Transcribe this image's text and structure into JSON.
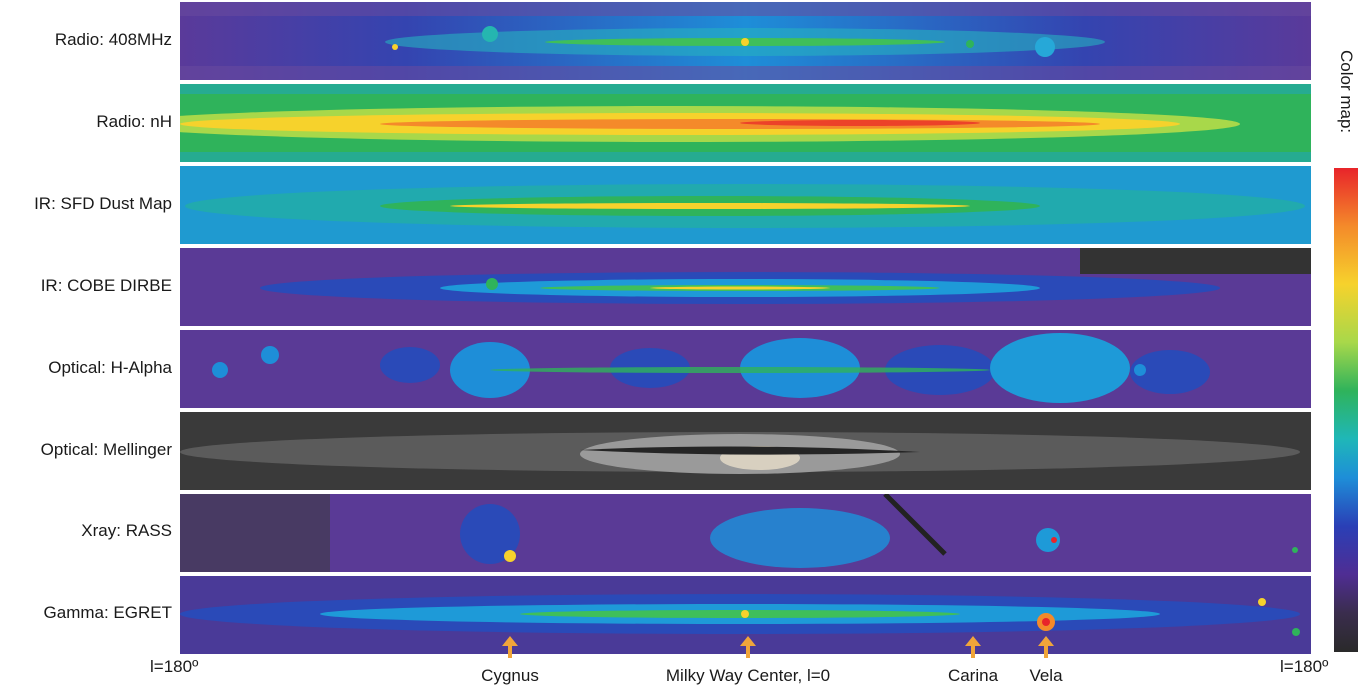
{
  "rows": [
    {
      "label": "Radio: 408MHz"
    },
    {
      "label": "Radio: nH"
    },
    {
      "label": "IR: SFD Dust Map"
    },
    {
      "label": "IR: COBE DIRBE"
    },
    {
      "label": "Optical: H-Alpha"
    },
    {
      "label": "Optical: Mellinger"
    },
    {
      "label": "Xray: RASS"
    },
    {
      "label": "Gamma: EGRET"
    }
  ],
  "colormap": {
    "label": "Color map:",
    "colors": [
      "#e8242a",
      "#f6d22c",
      "#2fb35b",
      "#1e8ed8",
      "#4f2d93",
      "#2a2a2a"
    ]
  },
  "axis": {
    "left_label": "l=180º",
    "right_label": "l=180º"
  },
  "features": [
    {
      "label": "Cygnus"
    },
    {
      "label": "Milky Way Center, l=0"
    },
    {
      "label": "Carina"
    },
    {
      "label": "Vela"
    }
  ],
  "colors": {
    "arrow": "#f0a53a",
    "separator": "#ffffff"
  }
}
